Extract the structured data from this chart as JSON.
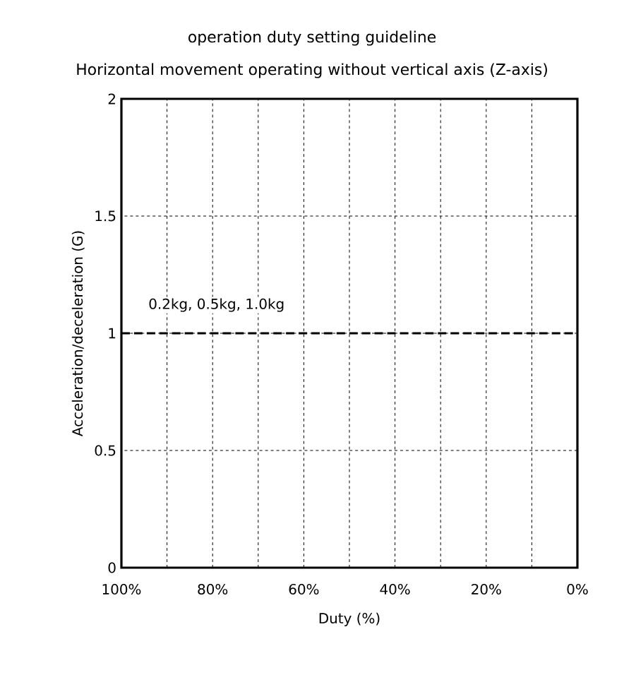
{
  "chart_data": {
    "type": "line",
    "title": "operation duty setting guideline",
    "subtitle": "Horizontal movement operating without vertical axis (Z-axis)",
    "xlabel": "Duty (%)",
    "ylabel": "Acceleration/deceleration (G)",
    "x": [
      100,
      0
    ],
    "series": [
      {
        "name": "0.2kg, 0.5kg, 1.0kg",
        "color": "#000000",
        "values": [
          1,
          1
        ],
        "line_style": "dashed"
      }
    ],
    "xlim": [
      100,
      0
    ],
    "ylim": [
      0,
      2
    ],
    "xticks": [
      {
        "value": 100,
        "label": "100%"
      },
      {
        "value": 90,
        "label": null
      },
      {
        "value": 80,
        "label": "80%"
      },
      {
        "value": 70,
        "label": null
      },
      {
        "value": 60,
        "label": "60%"
      },
      {
        "value": 50,
        "label": null
      },
      {
        "value": 40,
        "label": "40%"
      },
      {
        "value": 30,
        "label": null
      },
      {
        "value": 20,
        "label": "20%"
      },
      {
        "value": 10,
        "label": null
      },
      {
        "value": 0,
        "label": "0%"
      }
    ],
    "yticks": [
      0,
      0.5,
      1,
      1.5,
      2
    ],
    "grid": true,
    "legend": false,
    "marker": "none"
  }
}
